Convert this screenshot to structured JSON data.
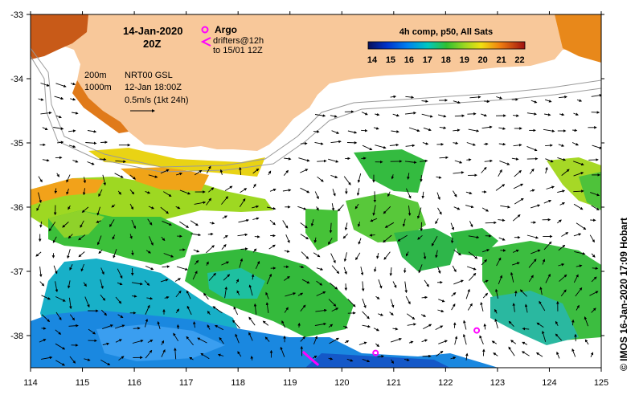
{
  "map": {
    "date_title": "14-Jan-2020",
    "time_title": "20Z",
    "legend": {
      "argo_label": "Argo",
      "drifters_line1": "drifters@12h",
      "drifters_line2": "to 15/01 12Z",
      "contour_200": "200m",
      "contour_1000": "1000m",
      "altimetry_label": "NRT00 GSL",
      "altimetry_time": "12-Jan 18:00Z",
      "velocity_scale": "0.5m/s (1kt 24h)"
    },
    "colorbar": {
      "title": "4h comp, p50, All Sats",
      "ticks": [
        "14",
        "15",
        "16",
        "17",
        "18",
        "19",
        "20",
        "21",
        "22"
      ],
      "min": 14,
      "max": 22.5
    },
    "credit": "© IMOS 16-Jan-2020 17:09 Hobart",
    "x_axis": {
      "min": 114,
      "max": 125,
      "ticks": [
        "114",
        "115",
        "116",
        "117",
        "118",
        "119",
        "120",
        "121",
        "122",
        "123",
        "124",
        "125"
      ]
    },
    "y_axis": {
      "min": -38.5,
      "max": -33,
      "ticks": [
        "-33",
        "-34",
        "-35",
        "-36",
        "-37",
        "-38"
      ]
    },
    "argo_floats": [
      {
        "lon": 120.65,
        "lat": -38.27
      },
      {
        "lon": 122.6,
        "lat": -37.92
      }
    ],
    "drifter_track": [
      {
        "lon": 119.25,
        "lat": -38.25
      },
      {
        "lon": 119.4,
        "lat": -38.36
      },
      {
        "lon": 119.55,
        "lat": -38.46
      }
    ],
    "colors": {
      "land": "#f8c89a",
      "argo": "#ff00ff",
      "drifter": "#ff00ff",
      "contour": "#999999"
    }
  }
}
